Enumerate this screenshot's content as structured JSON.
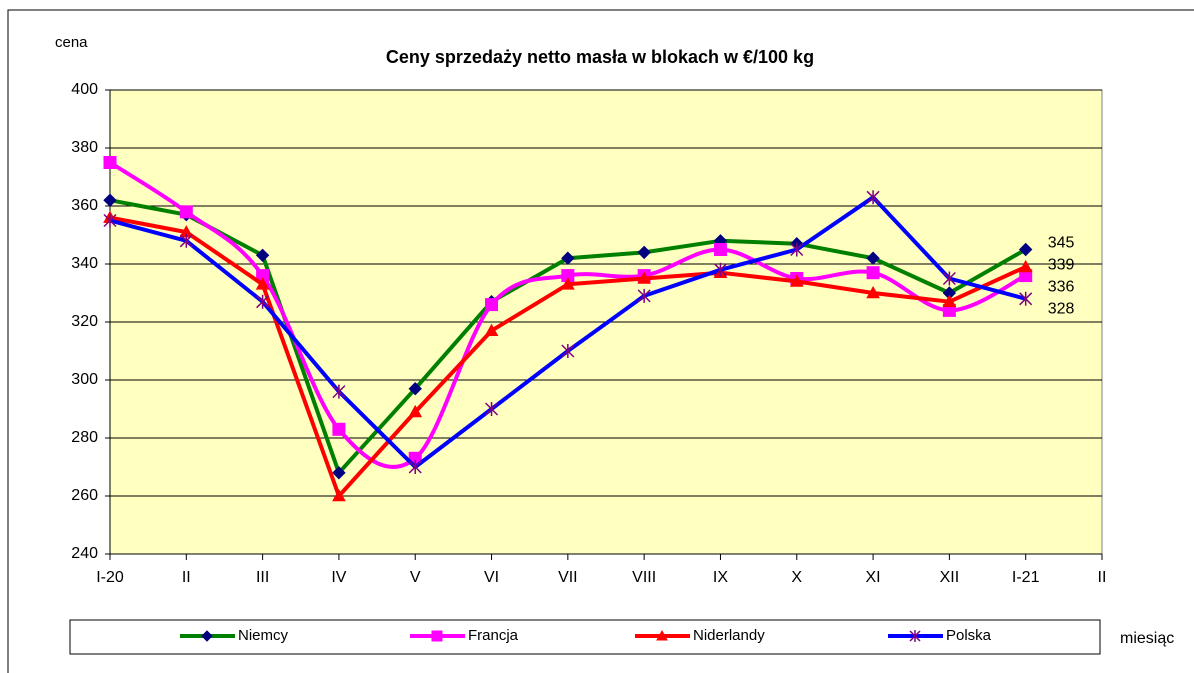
{
  "chart_data": {
    "type": "line",
    "title": "Ceny sprzedaży netto masła w blokach w €/100 kg",
    "y_label": "cena",
    "x_label": "miesiąc",
    "categories": [
      "I-20",
      "II",
      "III",
      "IV",
      "V",
      "VI",
      "VII",
      "VIII",
      "IX",
      "X",
      "XI",
      "XII",
      "I-21",
      "II"
    ],
    "series": [
      {
        "name": "Niemcy",
        "color": "#008000",
        "marker": "diamond",
        "marker_color": "#000080",
        "smooth": false,
        "values": [
          362,
          357,
          343,
          268,
          297,
          327,
          342,
          344,
          348,
          347,
          342,
          330,
          345,
          null
        ]
      },
      {
        "name": "Francja",
        "color": "#ff00ff",
        "marker": "square",
        "marker_color": "#ff00ff",
        "smooth": true,
        "values": [
          375,
          358,
          336,
          283,
          273,
          326,
          336,
          336,
          345,
          335,
          337,
          324,
          336,
          null
        ]
      },
      {
        "name": "Niderlandy",
        "color": "#ff0000",
        "marker": "triangle",
        "marker_color": "#ff0000",
        "smooth": false,
        "values": [
          356,
          351,
          333,
          260,
          289,
          317,
          333,
          335,
          337,
          334,
          330,
          327,
          339,
          null
        ]
      },
      {
        "name": "Polska",
        "color": "#0000ff",
        "marker": "star",
        "marker_color": "#800080",
        "smooth": false,
        "values": [
          355,
          348,
          327,
          296,
          270,
          290,
          310,
          329,
          338,
          345,
          363,
          335,
          328,
          null
        ]
      }
    ],
    "ylim": [
      240,
      400
    ],
    "yticks": [
      240,
      260,
      280,
      300,
      320,
      340,
      360,
      380,
      400
    ],
    "grid": true,
    "legend": "bottom"
  }
}
